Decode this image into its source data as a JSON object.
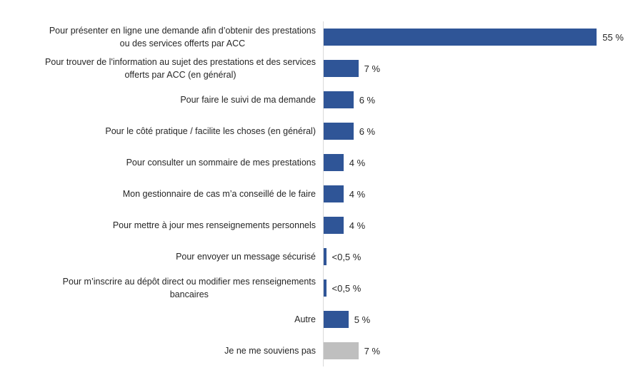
{
  "chart_data": {
    "type": "bar",
    "orientation": "horizontal",
    "unit": "%",
    "title": "",
    "xlabel": "",
    "ylabel": "",
    "xlim": [
      0,
      63
    ],
    "grid": false,
    "legend": "none",
    "categories": [
      "Pour présenter en ligne une demande afin d’obtenir des prestations\nou des services offerts par ACC",
      "Pour trouver de l'information au sujet des prestations et des services\nofferts par ACC (en général)",
      "Pour faire le suivi de ma demande",
      "Pour le côté pratique / facilite les choses (en général)",
      "Pour consulter un sommaire de mes prestations",
      "Mon gestionnaire de cas m’a conseillé de le faire",
      "Pour mettre à jour mes renseignements personnels",
      "Pour envoyer un message sécurisé",
      "Pour m’inscrire au dépôt direct ou modifier mes renseignements\nbancaires",
      "Autre",
      "Je ne me souviens pas"
    ],
    "values": [
      55,
      7,
      6,
      6,
      4,
      4,
      4,
      0.5,
      0.5,
      5,
      7
    ],
    "value_labels": [
      "55 %",
      "7 %",
      "6 %",
      "6 %",
      "4 %",
      "4 %",
      "4 %",
      "<0,5 %",
      "<0,5 %",
      "5 %",
      "7 %"
    ],
    "bar_colors": [
      "#2F5597",
      "#2F5597",
      "#2F5597",
      "#2F5597",
      "#2F5597",
      "#2F5597",
      "#2F5597",
      "#2F5597",
      "#2F5597",
      "#2F5597",
      "#BFBFBF"
    ],
    "colors": {
      "primary_bar": "#2F5597",
      "muted_bar": "#BFBFBF",
      "axis_line": "#D9D9D9",
      "text": "#262626"
    }
  }
}
